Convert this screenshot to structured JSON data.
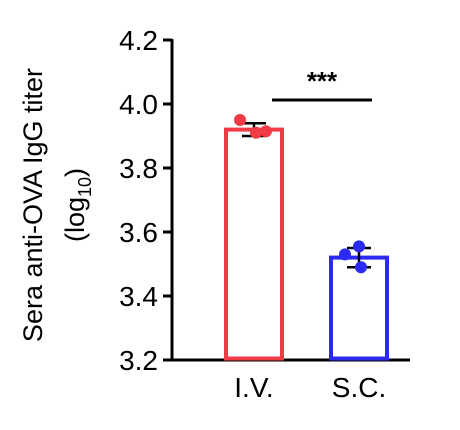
{
  "chart_data": {
    "type": "bar",
    "categories": [
      "I.V.",
      "S.C."
    ],
    "values": [
      3.92,
      3.52
    ],
    "error": [
      0.02,
      0.03
    ],
    "points": [
      [
        3.95,
        3.91,
        3.915
      ],
      [
        3.555,
        3.53,
        3.49
      ]
    ],
    "colors": [
      "#f03a45",
      "#2a2af2"
    ],
    "ylabel_line1": "Sera anti-OVA IgG titer",
    "ylabel_line2_main": "(log",
    "ylabel_line2_sub": "10",
    "ylabel_line2_end": ")",
    "ylim": [
      3.2,
      4.2
    ],
    "yticks": [
      "3.2",
      "3.4",
      "3.6",
      "3.8",
      "4.0",
      "4.2"
    ],
    "annotation": "***",
    "grid": false,
    "legend": "none"
  }
}
